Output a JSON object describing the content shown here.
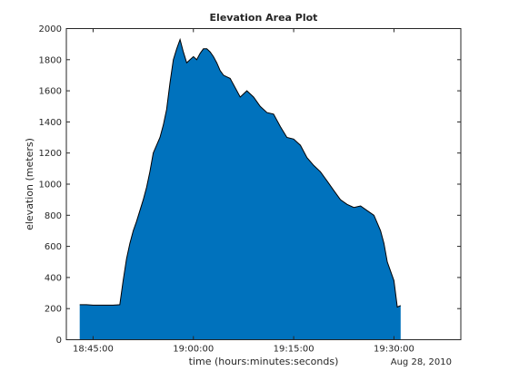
{
  "chart_data": {
    "type": "area",
    "title": "Elevation Area Plot",
    "xlabel": "time (hours:minutes:seconds)",
    "ylabel": "elevation (meters)",
    "date_label": "Aug 28, 2010",
    "xlim": [
      "18:41:00",
      "19:40:00"
    ],
    "ylim": [
      0,
      2000
    ],
    "grid": false,
    "fill_color": "#0072bd",
    "edge_color": "#000000",
    "x_ticks": [
      "18:45:00",
      "19:00:00",
      "19:15:00",
      "19:30:00"
    ],
    "y_ticks": [
      0,
      200,
      400,
      600,
      800,
      1000,
      1200,
      1400,
      1600,
      1800,
      2000
    ],
    "series": [
      {
        "x": [
          "18:43:00",
          "18:44:00",
          "18:45:00",
          "18:46:00",
          "18:47:00",
          "18:48:00",
          "18:49:00",
          "18:49:30",
          "18:50:00",
          "18:50:30",
          "18:51:00",
          "18:51:30",
          "18:52:00",
          "18:52:30",
          "18:53:00",
          "18:53:30",
          "18:54:00",
          "18:54:30",
          "18:55:00",
          "18:55:30",
          "18:56:00",
          "18:56:30",
          "18:57:00",
          "18:57:30",
          "18:58:00",
          "18:58:30",
          "18:59:00",
          "18:59:30",
          "19:00:00",
          "19:00:30",
          "19:01:00",
          "19:01:30",
          "19:02:00",
          "19:02:30",
          "19:03:00",
          "19:03:30",
          "19:04:00",
          "19:04:30",
          "19:05:00",
          "19:05:30",
          "19:06:00",
          "19:07:00",
          "19:08:00",
          "19:08:30",
          "19:09:00",
          "19:09:30",
          "19:10:00",
          "19:11:00",
          "19:12:00",
          "19:13:00",
          "19:14:00",
          "19:15:00",
          "19:16:00",
          "19:17:00",
          "19:18:00",
          "19:19:00",
          "19:20:00",
          "19:21:00",
          "19:22:00",
          "19:23:00",
          "19:24:00",
          "19:25:00",
          "19:26:00",
          "19:27:00",
          "19:27:30",
          "19:28:00",
          "19:28:30",
          "19:29:00",
          "19:30:00",
          "19:30:30",
          "19:31:00"
        ],
        "y": [
          225,
          225,
          222,
          222,
          222,
          222,
          225,
          380,
          520,
          620,
          700,
          760,
          830,
          900,
          980,
          1080,
          1200,
          1250,
          1300,
          1380,
          1480,
          1650,
          1800,
          1870,
          1930,
          1850,
          1780,
          1800,
          1820,
          1800,
          1840,
          1870,
          1870,
          1850,
          1820,
          1780,
          1730,
          1700,
          1690,
          1680,
          1640,
          1560,
          1600,
          1580,
          1560,
          1530,
          1500,
          1460,
          1450,
          1370,
          1300,
          1290,
          1250,
          1170,
          1120,
          1080,
          1020,
          960,
          900,
          870,
          850,
          860,
          830,
          800,
          750,
          700,
          620,
          500,
          380,
          210,
          220
        ]
      }
    ]
  }
}
